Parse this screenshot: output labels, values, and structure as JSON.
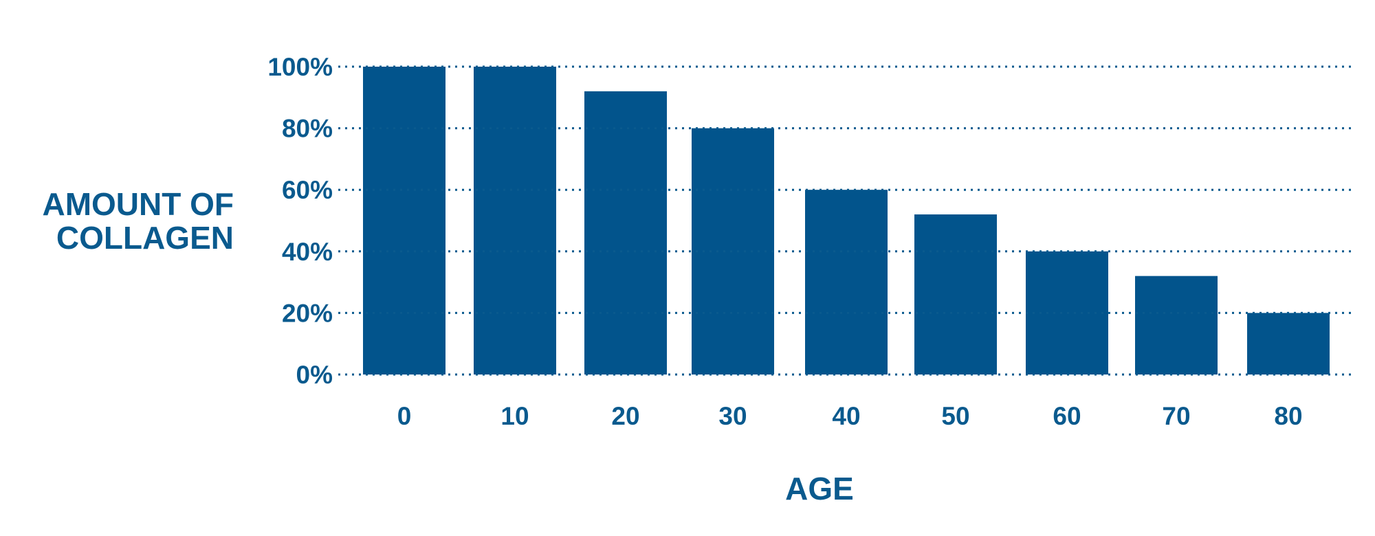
{
  "chart_data": {
    "type": "bar",
    "title": "",
    "xlabel": "AGE",
    "ylabel_lines": [
      "AMOUNT OF",
      "COLLAGEN"
    ],
    "categories": [
      "0",
      "10",
      "20",
      "30",
      "40",
      "50",
      "60",
      "70",
      "80"
    ],
    "values": [
      100,
      100,
      92,
      80,
      60,
      52,
      40,
      32,
      20
    ],
    "unit": "%",
    "ylim": [
      0,
      100
    ],
    "yticks": [
      0,
      20,
      40,
      60,
      80,
      100
    ],
    "ytick_labels": [
      "0%",
      "20%",
      "40%",
      "60%",
      "80%",
      "100%"
    ],
    "grid": "dotted horizontal",
    "legend": "none"
  },
  "colors": {
    "bar": "#02548c",
    "text": "#0a5a8e",
    "grid": "#0a5a8e",
    "background": "#ffffff"
  }
}
